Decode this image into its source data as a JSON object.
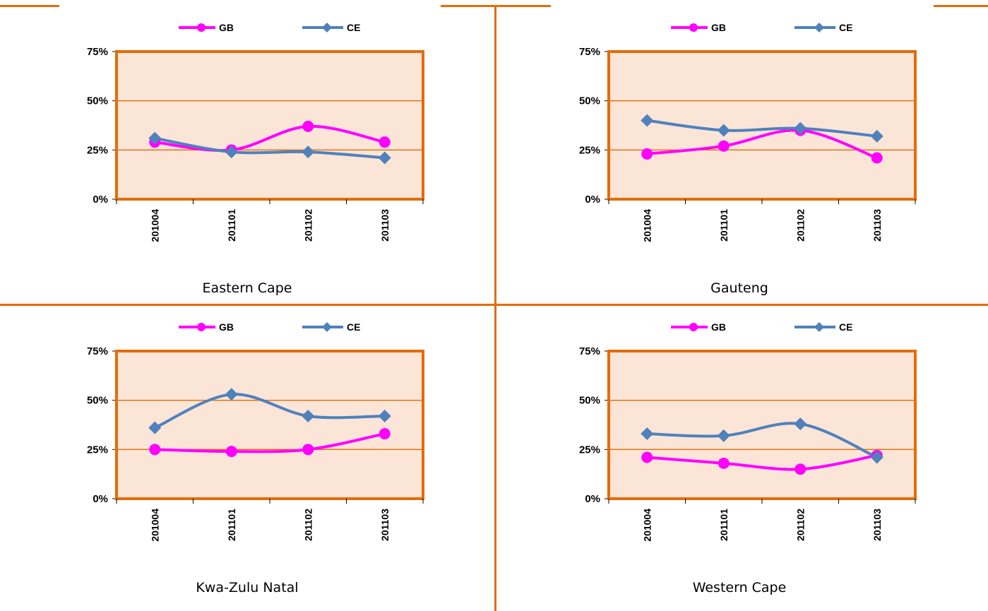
{
  "colors": {
    "divider": "#e46c0a",
    "plot_border": "#e46c0a",
    "plot_fill": "#fbe5d6",
    "gridline": "#e46c0a",
    "series_gb": "#ff00ff",
    "series_ce": "#4f81bd"
  },
  "chart_data": [
    {
      "type": "line",
      "title": "Eastern Cape",
      "categories": [
        "201004",
        "201101",
        "201102",
        "201103"
      ],
      "y_ticks": [
        "0%",
        "25%",
        "50%",
        "75%"
      ],
      "ylim": [
        0,
        75
      ],
      "grid": true,
      "legend_position": "top",
      "series": [
        {
          "name": "GB",
          "marker": "circle",
          "values": [
            29,
            25,
            37,
            29
          ]
        },
        {
          "name": "CE",
          "marker": "diamond",
          "values": [
            31,
            24,
            24,
            21
          ]
        }
      ]
    },
    {
      "type": "line",
      "title": "Gauteng",
      "categories": [
        "201004",
        "201101",
        "201102",
        "201103"
      ],
      "y_ticks": [
        "0%",
        "25%",
        "50%",
        "75%"
      ],
      "ylim": [
        0,
        75
      ],
      "grid": true,
      "legend_position": "top",
      "series": [
        {
          "name": "GB",
          "marker": "circle",
          "values": [
            23,
            27,
            35,
            21
          ]
        },
        {
          "name": "CE",
          "marker": "diamond",
          "values": [
            40,
            35,
            36,
            32
          ]
        }
      ]
    },
    {
      "type": "line",
      "title": "Kwa-Zulu Natal",
      "categories": [
        "201004",
        "201101",
        "201102",
        "201103"
      ],
      "y_ticks": [
        "0%",
        "25%",
        "50%",
        "75%"
      ],
      "ylim": [
        0,
        75
      ],
      "grid": true,
      "legend_position": "top",
      "series": [
        {
          "name": "GB",
          "marker": "circle",
          "values": [
            25,
            24,
            25,
            33
          ]
        },
        {
          "name": "CE",
          "marker": "diamond",
          "values": [
            36,
            53,
            42,
            42
          ]
        }
      ]
    },
    {
      "type": "line",
      "title": "Western Cape",
      "categories": [
        "201004",
        "201101",
        "201102",
        "201103"
      ],
      "y_ticks": [
        "0%",
        "25%",
        "50%",
        "75%"
      ],
      "ylim": [
        0,
        75
      ],
      "grid": true,
      "legend_position": "top",
      "series": [
        {
          "name": "GB",
          "marker": "circle",
          "values": [
            21,
            18,
            15,
            22
          ]
        },
        {
          "name": "CE",
          "marker": "diamond",
          "values": [
            33,
            32,
            38,
            21
          ]
        }
      ]
    }
  ]
}
